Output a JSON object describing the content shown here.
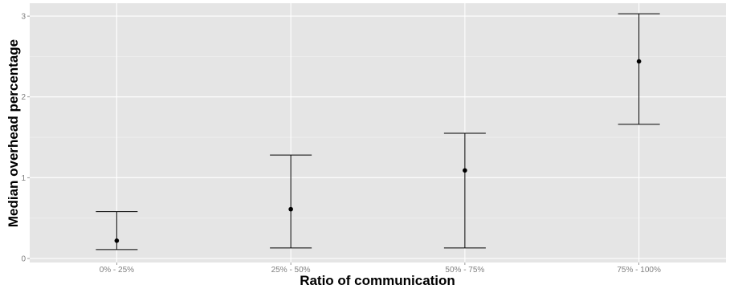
{
  "chart_data": {
    "type": "errorbar",
    "xlabel": "Ratio of communication",
    "ylabel": "Median overhead percentage",
    "categories": [
      "0% - 25%",
      "25% - 50%",
      "50% - 75%",
      "75% - 100%"
    ],
    "values": [
      0.22,
      0.61,
      1.09,
      2.44
    ],
    "lower": [
      0.11,
      0.13,
      0.13,
      1.66
    ],
    "upper": [
      0.58,
      1.28,
      1.55,
      3.03
    ],
    "yticks": [
      "0",
      "1",
      "2",
      "3"
    ],
    "ylim": [
      -0.05,
      3.16
    ],
    "grid": true,
    "colors": {
      "panel": "#e5e5e5",
      "grid_major": "#ffffff",
      "grid_minor": "#f2f2f2",
      "mark": "#000000",
      "tick_text": "#7f7f7f"
    }
  }
}
